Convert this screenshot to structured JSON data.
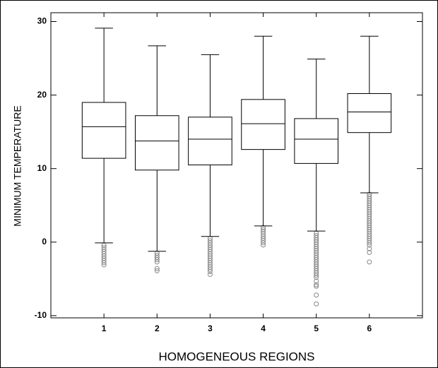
{
  "chart_data": {
    "type": "box",
    "x_label": "HOMOGENEOUS REGIONS",
    "y_label": "MINIMUM TEMPERATURE",
    "x": [
      1,
      2,
      3,
      4,
      5,
      6
    ],
    "xlim": [
      0,
      7
    ],
    "xticks": [
      1,
      2,
      3,
      4,
      5,
      6
    ],
    "ylim": [
      -10.3,
      31.2
    ],
    "yticks": [
      -10,
      0,
      10,
      20,
      30
    ],
    "color": "#000000",
    "flier_color": "#888888",
    "boxes": [
      {
        "whislo": -0.1,
        "q1": 11.4,
        "med": 15.7,
        "q3": 19.0,
        "whishi": 29.1,
        "fliers": [
          -0.4,
          -0.7,
          -1.0,
          -1.3,
          -1.6,
          -1.9,
          -2.2,
          -2.5,
          -2.8,
          -3.1
        ]
      },
      {
        "whislo": -1.25,
        "q1": 9.8,
        "med": 13.75,
        "q3": 17.2,
        "whishi": 26.7,
        "fliers": [
          -1.5,
          -1.8,
          -2.1,
          -2.4,
          -2.7,
          -3.6,
          -3.9
        ]
      },
      {
        "whislo": 0.77,
        "q1": 10.5,
        "med": 14.0,
        "q3": 17.0,
        "whishi": 25.5,
        "fliers": [
          0.5,
          0.2,
          -0.1,
          -0.4,
          -0.7,
          -1.0,
          -1.3,
          -1.6,
          -1.9,
          -2.2,
          -2.5,
          -2.8,
          -3.1,
          -3.4,
          -3.7,
          -4.0,
          -4.4
        ]
      },
      {
        "whislo": 2.2,
        "q1": 12.6,
        "med": 16.1,
        "q3": 19.4,
        "whishi": 28.0,
        "fliers": [
          2.0,
          1.7,
          1.4,
          1.1,
          0.8,
          0.5,
          0.2,
          -0.1,
          -0.4
        ]
      },
      {
        "whislo": 1.5,
        "q1": 10.7,
        "med": 14.0,
        "q3": 16.8,
        "whishi": 24.9,
        "fliers": [
          1.2,
          0.9,
          0.6,
          0.3,
          0,
          -0.3,
          -0.6,
          -0.9,
          -1.2,
          -1.5,
          -1.8,
          -2.1,
          -2.4,
          -2.7,
          -3.0,
          -3.3,
          -3.6,
          -3.9,
          -4.2,
          -4.5,
          -4.8,
          -5.3,
          -5.8,
          -6.0,
          -7.2,
          -8.4
        ]
      },
      {
        "whislo": 6.7,
        "q1": 14.9,
        "med": 17.7,
        "q3": 20.2,
        "whishi": 28.0,
        "fliers": [
          6.5,
          6.2,
          5.9,
          5.6,
          5.3,
          5.0,
          4.7,
          4.4,
          4.1,
          3.8,
          3.5,
          3.2,
          2.9,
          2.6,
          2.3,
          2.0,
          1.7,
          1.4,
          1.1,
          0.8,
          0.5,
          0.2,
          -0.1,
          -0.4,
          -0.9,
          -1.4,
          -2.7
        ]
      }
    ]
  }
}
